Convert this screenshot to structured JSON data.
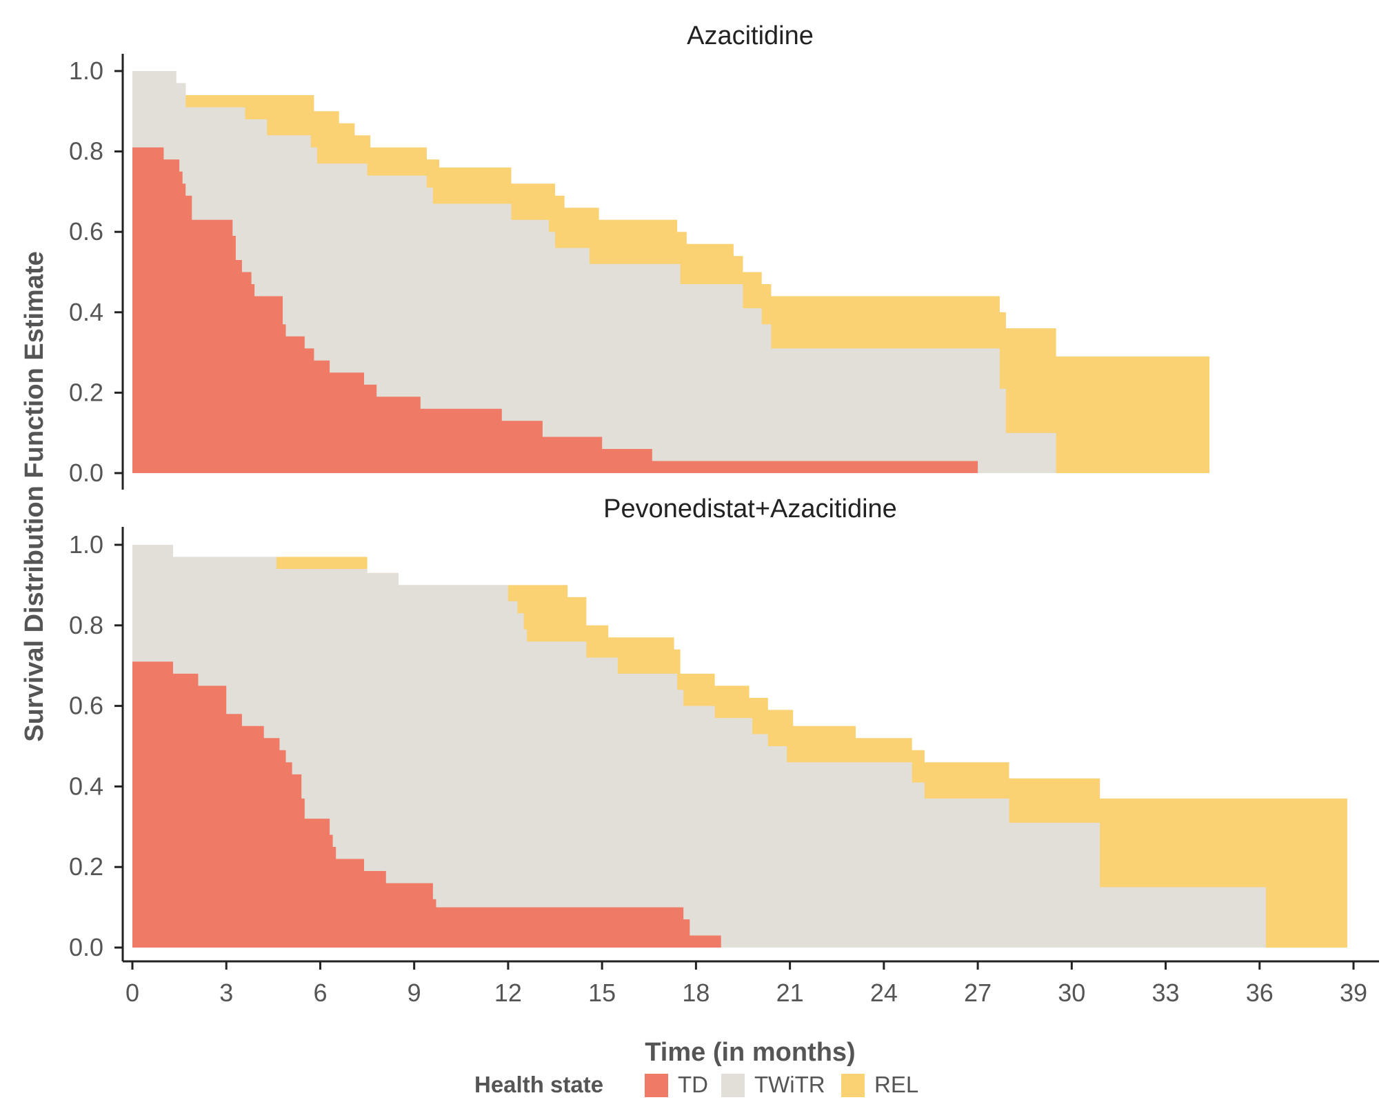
{
  "chart_data": {
    "type": "area",
    "subtype": "stacked step survival (Kaplan-Meier partitioned by health state)",
    "xlabel": "Time (in months)",
    "ylabel": "Survival Distribution Function Estimate",
    "xlim": [
      0,
      39
    ],
    "ylim": [
      0,
      1
    ],
    "x_ticks": [
      "0",
      "3",
      "6",
      "9",
      "12",
      "15",
      "18",
      "21",
      "24",
      "27",
      "30",
      "33",
      "36",
      "39"
    ],
    "y_ticks": [
      "0.0",
      "0.2",
      "0.4",
      "0.6",
      "0.8",
      "1.0"
    ],
    "legend": {
      "title": "Health state",
      "position": "bottom",
      "entries": [
        {
          "label": "TD",
          "color": "#ef7b67"
        },
        {
          "label": "TWiTR",
          "color": "#e2ded8"
        },
        {
          "label": "REL",
          "color": "#fad173"
        }
      ]
    },
    "panels": [
      {
        "title": "Azacitidine",
        "series": [
          {
            "name": "REL",
            "color": "#fad173",
            "end": 34.4,
            "steps": [
              [
                0,
                1.0
              ],
              [
                1.4,
                0.97
              ],
              [
                1.7,
                0.94
              ],
              [
                5.8,
                0.9
              ],
              [
                6.6,
                0.87
              ],
              [
                7.1,
                0.84
              ],
              [
                7.6,
                0.81
              ],
              [
                9.4,
                0.78
              ],
              [
                9.8,
                0.76
              ],
              [
                12.1,
                0.72
              ],
              [
                13.5,
                0.69
              ],
              [
                13.8,
                0.66
              ],
              [
                14.9,
                0.63
              ],
              [
                17.4,
                0.6
              ],
              [
                17.7,
                0.57
              ],
              [
                19.2,
                0.54
              ],
              [
                19.5,
                0.5
              ],
              [
                20.1,
                0.47
              ],
              [
                20.4,
                0.44
              ],
              [
                27.7,
                0.4
              ],
              [
                27.9,
                0.36
              ],
              [
                29.5,
                0.29
              ]
            ]
          },
          {
            "name": "TWiTR",
            "color": "#e2ded8",
            "end": 29.5,
            "steps": [
              [
                0,
                1.0
              ],
              [
                1.4,
                0.97
              ],
              [
                1.7,
                0.91
              ],
              [
                3.6,
                0.88
              ],
              [
                4.3,
                0.84
              ],
              [
                5.7,
                0.81
              ],
              [
                5.9,
                0.77
              ],
              [
                7.5,
                0.74
              ],
              [
                9.4,
                0.71
              ],
              [
                9.6,
                0.67
              ],
              [
                12.1,
                0.63
              ],
              [
                13.3,
                0.6
              ],
              [
                13.5,
                0.56
              ],
              [
                14.6,
                0.52
              ],
              [
                17.5,
                0.47
              ],
              [
                19.5,
                0.41
              ],
              [
                20.1,
                0.37
              ],
              [
                20.4,
                0.31
              ],
              [
                27.7,
                0.21
              ],
              [
                27.9,
                0.1
              ]
            ]
          },
          {
            "name": "TD",
            "color": "#ef7b67",
            "end": 27.0,
            "steps": [
              [
                0,
                0.81
              ],
              [
                1.0,
                0.78
              ],
              [
                1.5,
                0.75
              ],
              [
                1.6,
                0.72
              ],
              [
                1.7,
                0.69
              ],
              [
                1.9,
                0.63
              ],
              [
                3.2,
                0.59
              ],
              [
                3.3,
                0.53
              ],
              [
                3.5,
                0.5
              ],
              [
                3.8,
                0.47
              ],
              [
                3.9,
                0.44
              ],
              [
                4.8,
                0.37
              ],
              [
                4.9,
                0.34
              ],
              [
                5.5,
                0.31
              ],
              [
                5.8,
                0.28
              ],
              [
                6.3,
                0.25
              ],
              [
                7.4,
                0.22
              ],
              [
                7.8,
                0.19
              ],
              [
                9.2,
                0.16
              ],
              [
                11.8,
                0.13
              ],
              [
                13.1,
                0.09
              ],
              [
                15.0,
                0.06
              ],
              [
                16.6,
                0.03
              ]
            ]
          }
        ]
      },
      {
        "title": "Pevonedistat+Azacitidine",
        "series": [
          {
            "name": "REL",
            "color": "#fad173",
            "end": 38.8,
            "steps": [
              [
                0,
                1.0
              ],
              [
                1.3,
                0.97
              ],
              [
                7.5,
                0.93
              ],
              [
                8.5,
                0.9
              ],
              [
                13.9,
                0.87
              ],
              [
                14.5,
                0.8
              ],
              [
                15.2,
                0.77
              ],
              [
                17.3,
                0.74
              ],
              [
                17.5,
                0.68
              ],
              [
                18.6,
                0.65
              ],
              [
                19.7,
                0.62
              ],
              [
                20.3,
                0.59
              ],
              [
                21.1,
                0.55
              ],
              [
                23.1,
                0.52
              ],
              [
                24.9,
                0.49
              ],
              [
                25.3,
                0.46
              ],
              [
                28.0,
                0.42
              ],
              [
                30.9,
                0.37
              ]
            ]
          },
          {
            "name": "TWiTR",
            "color": "#e2ded8",
            "end": 36.2,
            "steps": [
              [
                0,
                1.0
              ],
              [
                1.3,
                0.97
              ],
              [
                4.6,
                0.94
              ],
              [
                7.5,
                0.93
              ],
              [
                8.5,
                0.9
              ],
              [
                12.0,
                0.86
              ],
              [
                12.3,
                0.83
              ],
              [
                12.5,
                0.79
              ],
              [
                12.6,
                0.76
              ],
              [
                14.5,
                0.72
              ],
              [
                15.5,
                0.68
              ],
              [
                17.4,
                0.64
              ],
              [
                17.6,
                0.6
              ],
              [
                18.6,
                0.57
              ],
              [
                19.8,
                0.53
              ],
              [
                20.3,
                0.5
              ],
              [
                20.9,
                0.46
              ],
              [
                24.9,
                0.41
              ],
              [
                25.3,
                0.37
              ],
              [
                28.0,
                0.31
              ],
              [
                30.9,
                0.15
              ]
            ]
          },
          {
            "name": "TD",
            "color": "#ef7b67",
            "end": 18.8,
            "steps": [
              [
                0,
                0.71
              ],
              [
                1.3,
                0.68
              ],
              [
                2.1,
                0.65
              ],
              [
                3.0,
                0.58
              ],
              [
                3.5,
                0.55
              ],
              [
                4.2,
                0.52
              ],
              [
                4.7,
                0.49
              ],
              [
                4.9,
                0.46
              ],
              [
                5.1,
                0.43
              ],
              [
                5.4,
                0.37
              ],
              [
                5.5,
                0.32
              ],
              [
                6.3,
                0.28
              ],
              [
                6.4,
                0.25
              ],
              [
                6.5,
                0.22
              ],
              [
                7.4,
                0.19
              ],
              [
                8.1,
                0.16
              ],
              [
                9.6,
                0.12
              ],
              [
                9.7,
                0.1
              ],
              [
                17.6,
                0.07
              ],
              [
                17.8,
                0.03
              ]
            ]
          }
        ]
      }
    ]
  }
}
